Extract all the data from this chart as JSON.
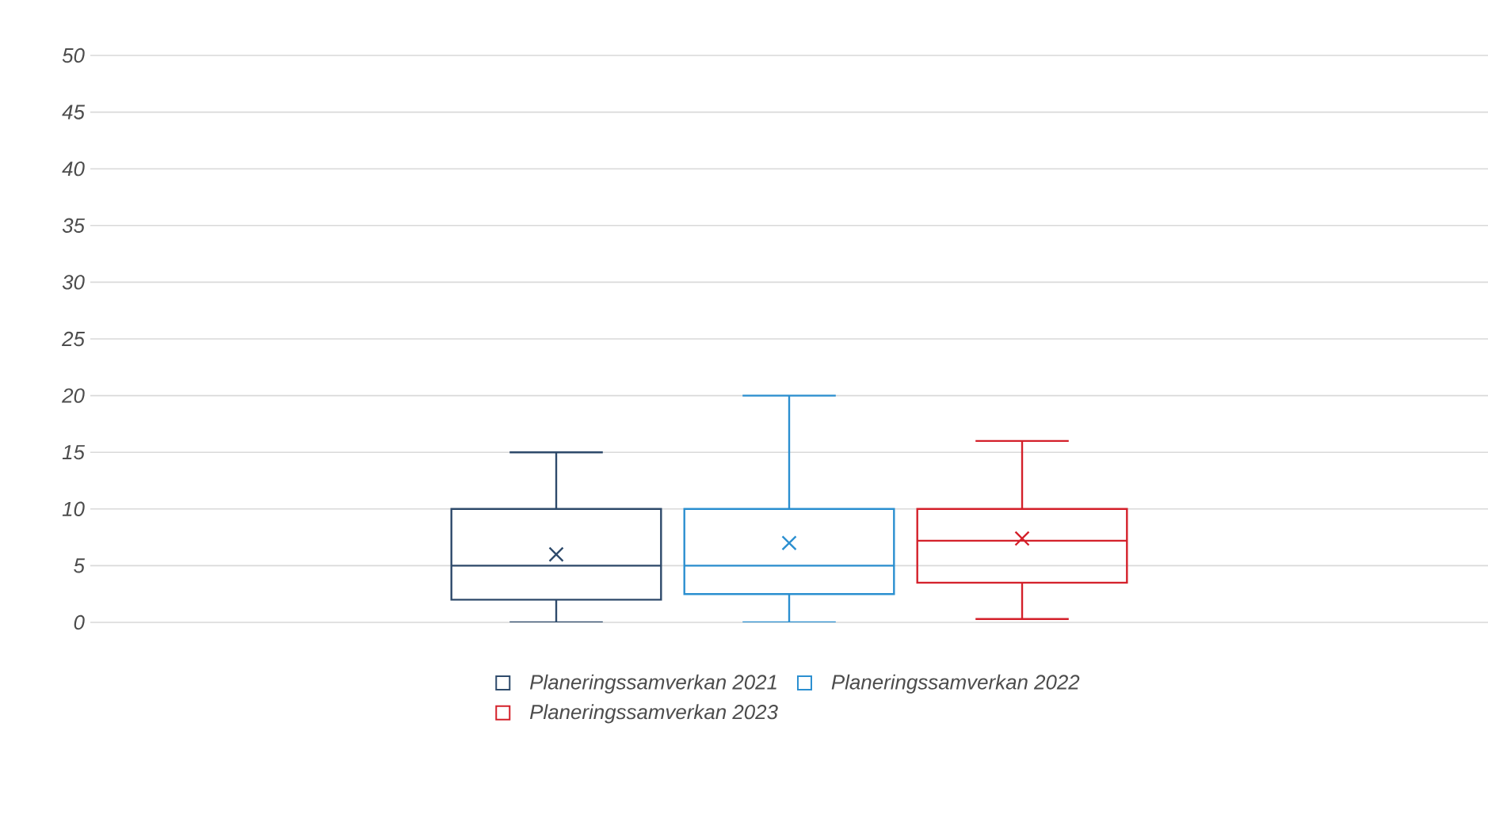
{
  "chart_data": {
    "type": "box",
    "categories": [
      null
    ],
    "series": [
      {
        "name": "Planeringssamverkan 2021",
        "color": "#2e4a6b",
        "boxes": [
          {
            "low": 0,
            "q1": 2,
            "median": 5,
            "q3": 10,
            "high": 15,
            "mean": 6
          }
        ]
      },
      {
        "name": "Planeringssamverkan 2022",
        "color": "#2b8fd0",
        "boxes": [
          {
            "low": 0,
            "q1": 2.5,
            "median": 5,
            "q3": 10,
            "high": 20,
            "mean": 7
          }
        ]
      },
      {
        "name": "Planeringssamverkan 2023",
        "color": "#d4202a",
        "boxes": [
          {
            "low": 0.3,
            "q1": 3.5,
            "median": 7.2,
            "q3": 10,
            "high": 16,
            "mean": 7.4
          }
        ]
      }
    ],
    "ylim": [
      0,
      50
    ],
    "yticks": [
      0,
      5,
      10,
      15,
      20,
      25,
      30,
      35,
      40,
      45,
      50
    ],
    "grid": "y",
    "legend": "bottom"
  }
}
